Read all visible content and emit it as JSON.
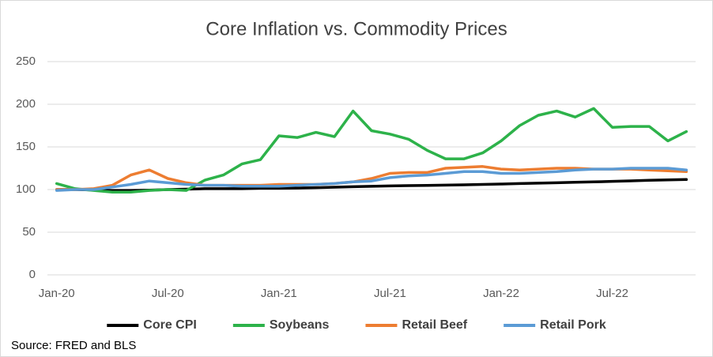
{
  "chart_data": {
    "type": "line",
    "title": "Core Inflation vs. Commodity Prices",
    "source": "Source: FRED and BLS",
    "categories": [
      "Jan-20",
      null,
      null,
      null,
      null,
      null,
      "Jul-20",
      null,
      null,
      null,
      null,
      null,
      "Jan-21",
      null,
      null,
      null,
      null,
      null,
      "Jul-21",
      null,
      null,
      null,
      null,
      null,
      "Jan-22",
      null,
      null,
      null,
      null,
      null,
      "Jul-22",
      null,
      null,
      null,
      null
    ],
    "series": [
      {
        "name": "Core CPI",
        "color": "#000000",
        "values": [
          100,
          100,
          99.5,
          99,
          99,
          99.3,
          100,
          100.5,
          101,
          101,
          101,
          101.5,
          101.5,
          101.8,
          102.2,
          102.8,
          103.3,
          103.8,
          104.3,
          104.6,
          104.9,
          105.2,
          105.6,
          106,
          106.5,
          107,
          107.5,
          108,
          108.5,
          109,
          109.6,
          110.2,
          110.8,
          111.3,
          111.8
        ]
      },
      {
        "name": "Soybeans",
        "color": "#2db24a",
        "values": [
          107,
          101,
          99,
          97,
          97,
          99,
          100,
          99,
          111,
          117,
          130,
          135,
          163,
          161,
          167,
          162,
          192,
          169,
          165,
          159,
          146,
          136,
          136,
          143,
          157,
          175,
          187,
          192,
          185,
          195,
          173,
          174,
          174,
          157,
          168
        ]
      },
      {
        "name": "Retail Beef",
        "color": "#ed7d31",
        "values": [
          100,
          100,
          101,
          105,
          117,
          123,
          113,
          108,
          105,
          105,
          105,
          105,
          106,
          106,
          106,
          107,
          109,
          113,
          119,
          120,
          120,
          125,
          126,
          127,
          124,
          123,
          124,
          125,
          125,
          124,
          124,
          124,
          123,
          122,
          121
        ]
      },
      {
        "name": "Retail Pork",
        "color": "#5b9bd5",
        "values": [
          99,
          100,
          100,
          103,
          106,
          110,
          108,
          106,
          105,
          105,
          104,
          104,
          104,
          105,
          106,
          107,
          109,
          110,
          114,
          116,
          117,
          119,
          121,
          121,
          119,
          119,
          120,
          121,
          123,
          124,
          124,
          125,
          125,
          125,
          123
        ]
      }
    ],
    "ylim": [
      0,
      250
    ],
    "yticks": [
      0,
      50,
      100,
      150,
      200,
      250
    ],
    "grid": true
  }
}
